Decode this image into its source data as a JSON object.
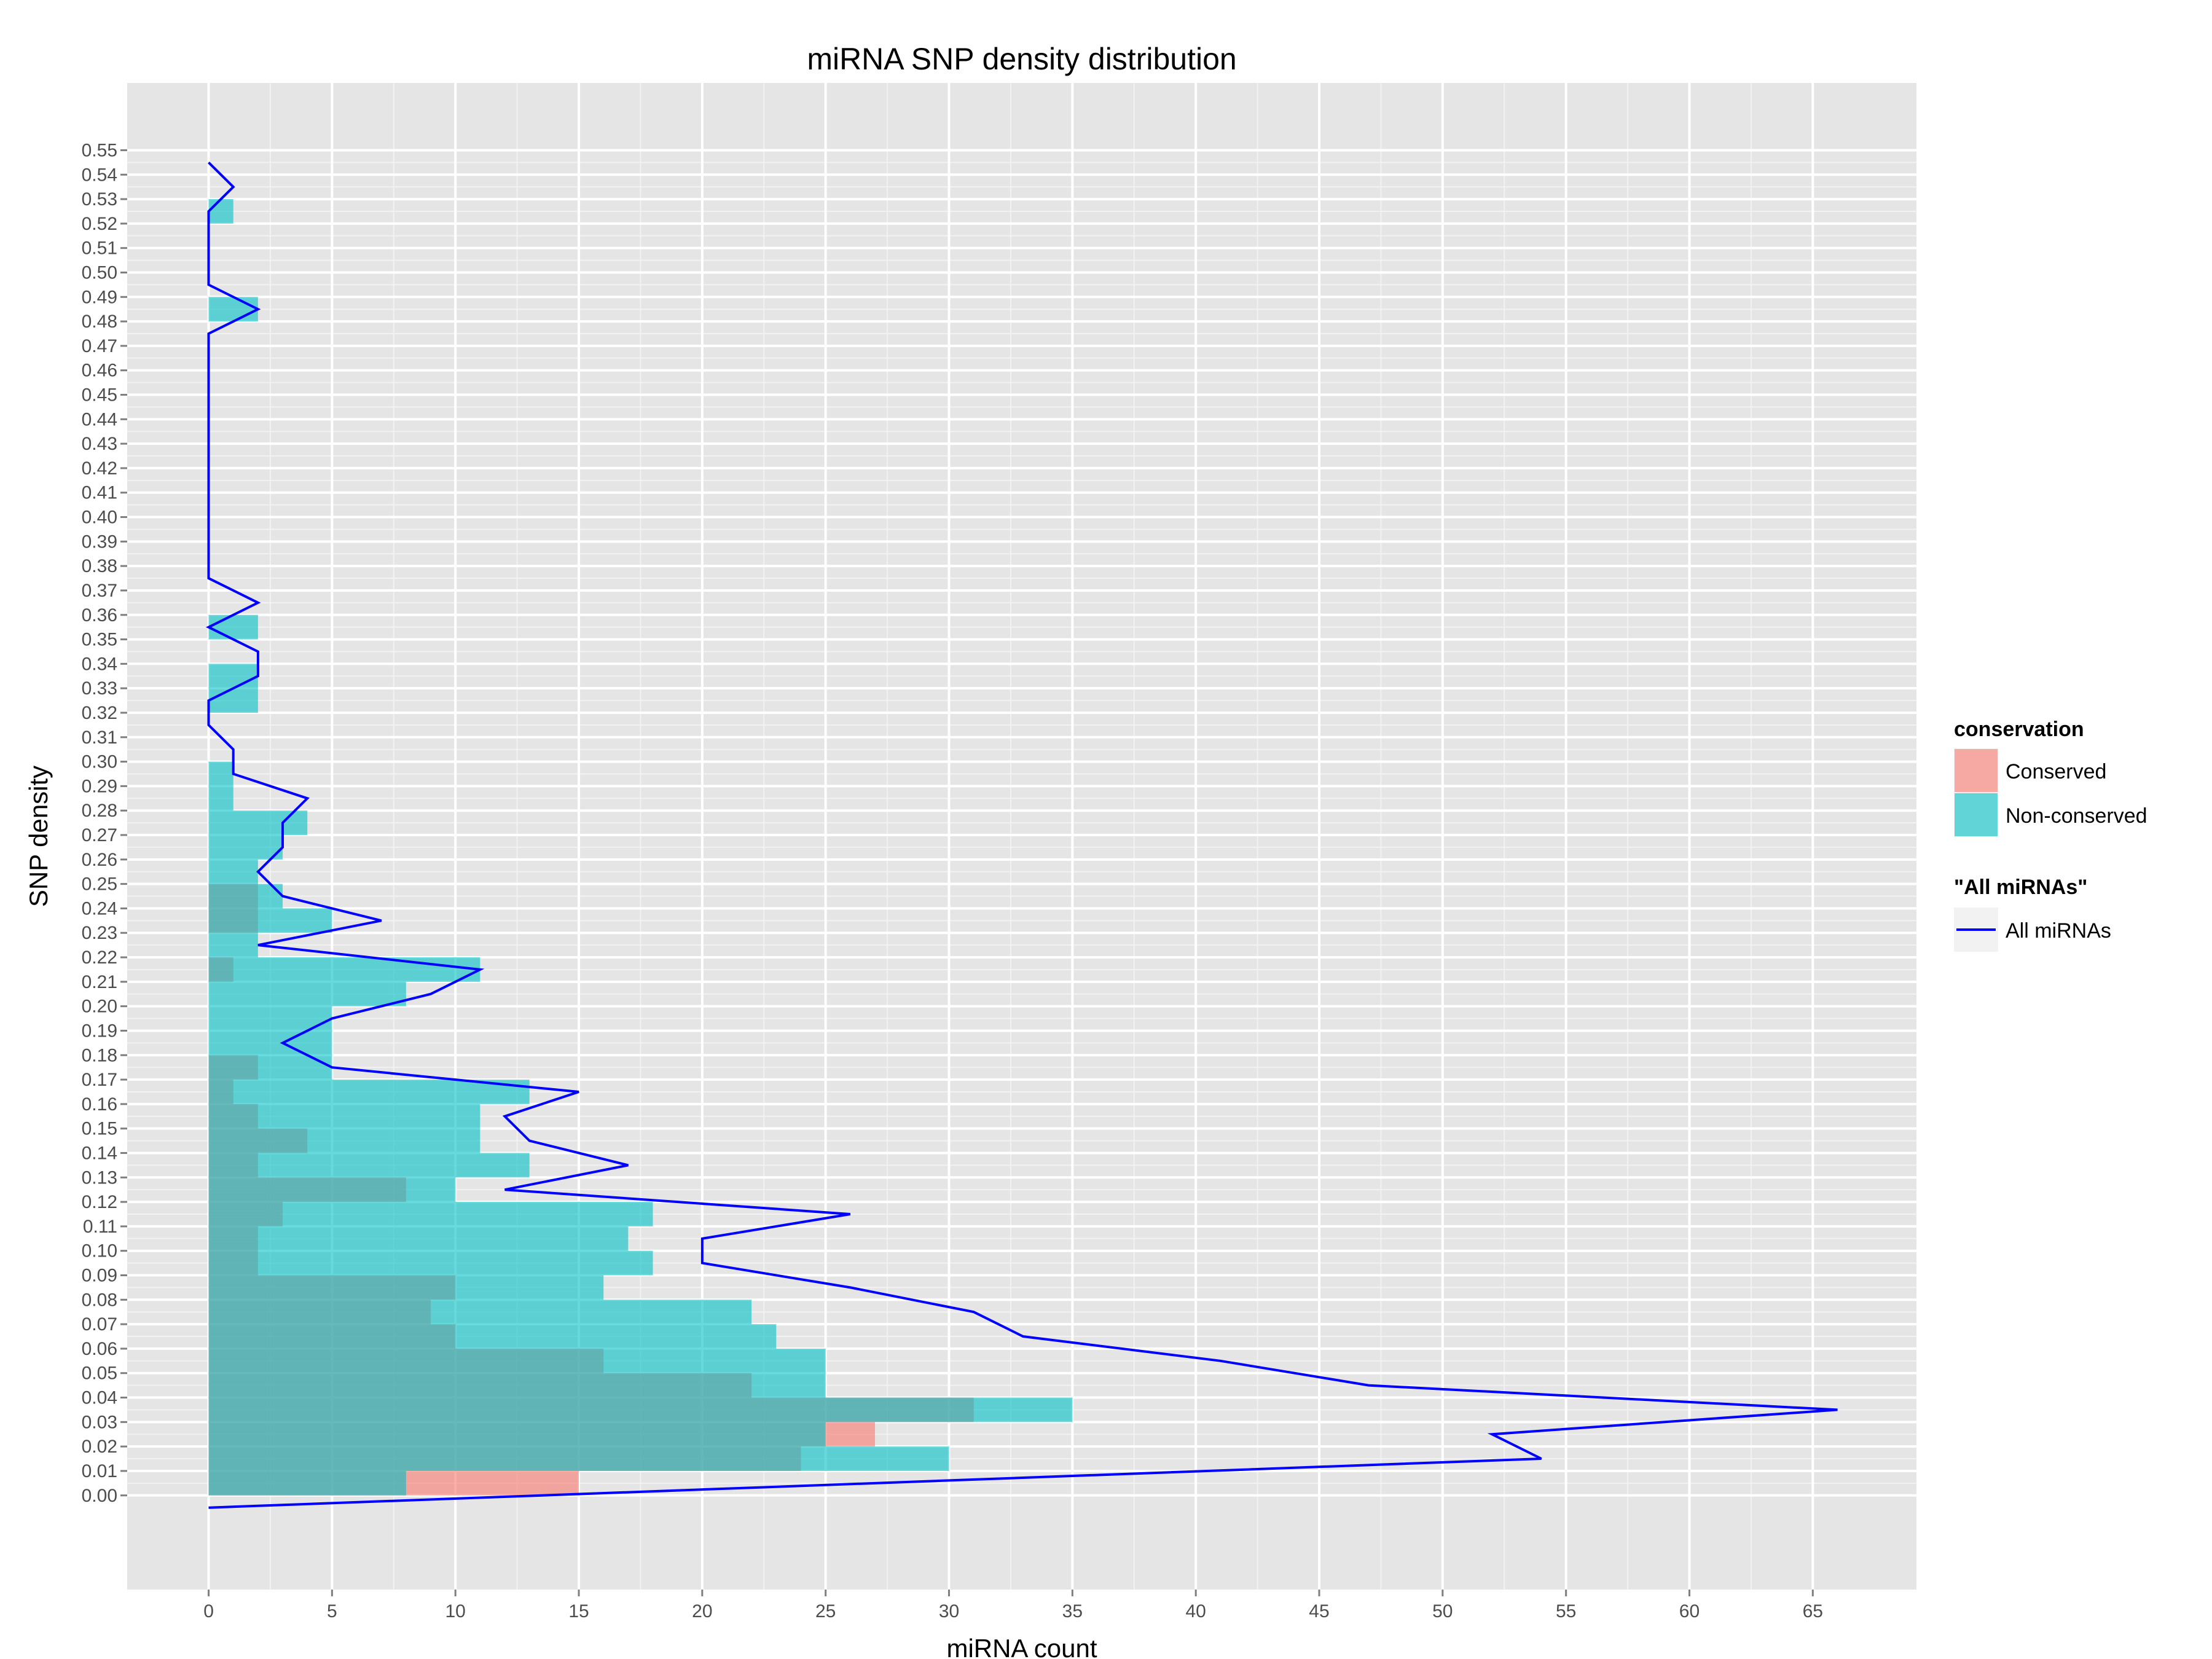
{
  "chart_data": {
    "type": "bar",
    "orientation": "horizontal",
    "title": "miRNA SNP density distribution",
    "xlabel": "miRNA count",
    "ylabel": "SNP density",
    "xlim": [
      -3.3,
      69.2
    ],
    "ylim": [
      -0.0385,
      0.5775
    ],
    "x_ticks": [
      0,
      5,
      10,
      15,
      20,
      25,
      30,
      35,
      40,
      45,
      50,
      55,
      60,
      65
    ],
    "x_tick_labels": [
      "0",
      "5",
      "10",
      "15",
      "20",
      "25",
      "30",
      "35",
      "40",
      "45",
      "50",
      "55",
      "60",
      "65"
    ],
    "y_ticks": [
      0.0,
      0.01,
      0.02,
      0.03,
      0.04,
      0.05,
      0.06,
      0.07,
      0.08,
      0.09,
      0.1,
      0.11,
      0.12,
      0.13,
      0.14,
      0.15,
      0.16,
      0.17,
      0.18,
      0.19,
      0.2,
      0.21,
      0.22,
      0.23,
      0.24,
      0.25,
      0.26,
      0.27,
      0.28,
      0.29,
      0.3,
      0.31,
      0.32,
      0.33,
      0.34,
      0.35,
      0.36,
      0.37,
      0.38,
      0.39,
      0.4,
      0.41,
      0.42,
      0.43,
      0.44,
      0.45,
      0.46,
      0.47,
      0.48,
      0.49,
      0.5,
      0.51,
      0.52,
      0.53,
      0.54,
      0.55
    ],
    "y_tick_labels": [
      "0.00",
      "0.01",
      "0.02",
      "0.03",
      "0.04",
      "0.05",
      "0.06",
      "0.07",
      "0.08",
      "0.09",
      "0.10",
      "0.11",
      "0.12",
      "0.13",
      "0.14",
      "0.15",
      "0.16",
      "0.17",
      "0.18",
      "0.19",
      "0.20",
      "0.21",
      "0.22",
      "0.23",
      "0.24",
      "0.25",
      "0.26",
      "0.27",
      "0.28",
      "0.29",
      "0.30",
      "0.31",
      "0.32",
      "0.33",
      "0.34",
      "0.35",
      "0.36",
      "0.37",
      "0.38",
      "0.39",
      "0.40",
      "0.41",
      "0.42",
      "0.43",
      "0.44",
      "0.45",
      "0.46",
      "0.47",
      "0.48",
      "0.49",
      "0.50",
      "0.51",
      "0.52",
      "0.53",
      "0.54",
      "0.55"
    ],
    "bin_width": 0.01,
    "bins": [
      0.0,
      0.01,
      0.02,
      0.03,
      0.04,
      0.05,
      0.06,
      0.07,
      0.08,
      0.09,
      0.1,
      0.11,
      0.12,
      0.13,
      0.14,
      0.15,
      0.16,
      0.17,
      0.18,
      0.19,
      0.2,
      0.21,
      0.22,
      0.23,
      0.24,
      0.25,
      0.26,
      0.27,
      0.28,
      0.29,
      0.3,
      0.31,
      0.32,
      0.33,
      0.34,
      0.35,
      0.36,
      0.37,
      0.38,
      0.39,
      0.4,
      0.41,
      0.42,
      0.43,
      0.44,
      0.45,
      0.46,
      0.47,
      0.48,
      0.49,
      0.5,
      0.51,
      0.52,
      0.53
    ],
    "series": [
      {
        "name": "Conserved",
        "color": "#F8766D",
        "values": [
          15,
          24,
          27,
          31,
          22,
          16,
          10,
          9,
          10,
          2,
          2,
          3,
          8,
          2,
          4,
          2,
          1,
          2,
          0,
          0,
          0,
          1,
          0,
          2,
          2,
          0,
          0,
          0,
          0,
          0,
          0,
          0,
          0,
          0,
          0,
          0,
          0,
          0,
          0,
          0,
          0,
          0,
          0,
          0,
          0,
          0,
          0,
          0,
          0,
          0,
          0,
          0,
          0,
          0
        ]
      },
      {
        "name": "Non-conserved",
        "color": "#00BFC4",
        "values": [
          8,
          30,
          25,
          35,
          25,
          25,
          23,
          22,
          16,
          18,
          17,
          18,
          10,
          13,
          11,
          11,
          13,
          5,
          5,
          5,
          8,
          11,
          2,
          5,
          3,
          2,
          3,
          4,
          1,
          1,
          0,
          0,
          2,
          2,
          0,
          2,
          0,
          0,
          0,
          0,
          0,
          0,
          0,
          0,
          0,
          0,
          0,
          0,
          2,
          0,
          0,
          0,
          1,
          0
        ]
      }
    ],
    "line_series": {
      "name": "All miRNAs",
      "color": "#0000FF",
      "points": [
        [
          0,
          -0.005
        ],
        [
          54,
          0.015
        ],
        [
          52,
          0.025
        ],
        [
          66,
          0.035
        ],
        [
          47,
          0.045
        ],
        [
          41,
          0.055
        ],
        [
          33,
          0.065
        ],
        [
          31,
          0.075
        ],
        [
          26,
          0.085
        ],
        [
          20,
          0.095
        ],
        [
          20,
          0.105
        ],
        [
          26,
          0.115
        ],
        [
          12,
          0.125
        ],
        [
          17,
          0.135
        ],
        [
          13,
          0.145
        ],
        [
          12,
          0.155
        ],
        [
          15,
          0.165
        ],
        [
          5,
          0.175
        ],
        [
          3,
          0.185
        ],
        [
          5,
          0.195
        ],
        [
          9,
          0.205
        ],
        [
          11,
          0.215
        ],
        [
          2,
          0.225
        ],
        [
          7,
          0.235
        ],
        [
          3,
          0.245
        ],
        [
          2,
          0.255
        ],
        [
          3,
          0.265
        ],
        [
          3,
          0.275
        ],
        [
          4,
          0.285
        ],
        [
          1,
          0.295
        ],
        [
          1,
          0.305
        ],
        [
          0,
          0.315
        ],
        [
          0,
          0.325
        ],
        [
          2,
          0.335
        ],
        [
          2,
          0.345
        ],
        [
          0,
          0.355
        ],
        [
          2,
          0.365
        ],
        [
          0,
          0.375
        ],
        [
          0,
          0.385
        ],
        [
          0,
          0.395
        ],
        [
          0,
          0.405
        ],
        [
          0,
          0.415
        ],
        [
          0,
          0.425
        ],
        [
          0,
          0.435
        ],
        [
          0,
          0.445
        ],
        [
          0,
          0.455
        ],
        [
          0,
          0.465
        ],
        [
          0,
          0.475
        ],
        [
          2,
          0.485
        ],
        [
          0,
          0.495
        ],
        [
          0,
          0.505
        ],
        [
          0,
          0.515
        ],
        [
          0,
          0.525
        ],
        [
          1,
          0.535
        ],
        [
          0,
          0.545
        ]
      ]
    },
    "legend": {
      "placement": "right",
      "fill_title": "conservation",
      "fill_entries": [
        "Conserved",
        "Non-conserved"
      ],
      "line_title": "\"All miRNAs\"",
      "line_entries": [
        "All miRNAs"
      ]
    },
    "grid": true
  }
}
